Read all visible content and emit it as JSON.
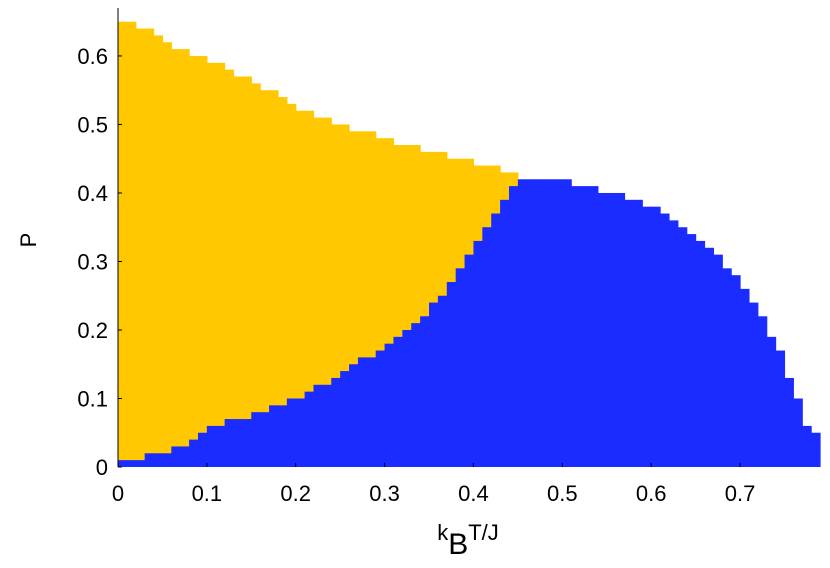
{
  "chart_data": {
    "type": "step-area",
    "xlabel": [
      "k",
      "B",
      "T/J"
    ],
    "ylabel": "P",
    "x": [
      0,
      0.01,
      0.02,
      0.03,
      0.04,
      0.05,
      0.06,
      0.07,
      0.08,
      0.09,
      0.1,
      0.11,
      0.12,
      0.13,
      0.14,
      0.15,
      0.16,
      0.17,
      0.18,
      0.19,
      0.2,
      0.21,
      0.22,
      0.23,
      0.24,
      0.25,
      0.26,
      0.27,
      0.28,
      0.29,
      0.3,
      0.31,
      0.32,
      0.33,
      0.34,
      0.35,
      0.36,
      0.37,
      0.38,
      0.39,
      0.4,
      0.41,
      0.42,
      0.43,
      0.44,
      0.45,
      0.46,
      0.47,
      0.48,
      0.49,
      0.5,
      0.51,
      0.52,
      0.53,
      0.54,
      0.55,
      0.56,
      0.57,
      0.58,
      0.59,
      0.6,
      0.61,
      0.62,
      0.63,
      0.64,
      0.65,
      0.66,
      0.67,
      0.68,
      0.69,
      0.7,
      0.71,
      0.72,
      0.73,
      0.74,
      0.75,
      0.76,
      0.77,
      0.78
    ],
    "step_width": 0.01,
    "series": [
      {
        "color": "#ffc800",
        "values": [
          0.65,
          0.65,
          0.64,
          0.64,
          0.63,
          0.62,
          0.61,
          0.61,
          0.6,
          0.6,
          0.59,
          0.59,
          0.58,
          0.57,
          0.57,
          0.56,
          0.55,
          0.55,
          0.54,
          0.53,
          0.52,
          0.52,
          0.51,
          0.51,
          0.5,
          0.5,
          0.49,
          0.49,
          0.49,
          0.48,
          0.48,
          0.47,
          0.47,
          0.47,
          0.46,
          0.46,
          0.46,
          0.45,
          0.45,
          0.45,
          0.44,
          0.44,
          0.44,
          0.43,
          0.43,
          null,
          null,
          null,
          null,
          null,
          null,
          null,
          null,
          null,
          null,
          null,
          null,
          null,
          null,
          null,
          null,
          null,
          null,
          null,
          null,
          null,
          null,
          null,
          null,
          null,
          null,
          null,
          null,
          null,
          null,
          null,
          null,
          null,
          null
        ]
      },
      {
        "color": "#1a2cff",
        "values": [
          0.01,
          0.01,
          0.01,
          0.02,
          0.02,
          0.02,
          0.03,
          0.03,
          0.04,
          0.05,
          0.06,
          0.06,
          0.07,
          0.07,
          0.07,
          0.08,
          0.08,
          0.09,
          0.09,
          0.1,
          0.1,
          0.11,
          0.12,
          0.12,
          0.13,
          0.14,
          0.15,
          0.16,
          0.16,
          0.17,
          0.18,
          0.19,
          0.2,
          0.21,
          0.22,
          0.24,
          0.25,
          0.27,
          0.29,
          0.31,
          0.33,
          0.35,
          0.37,
          0.39,
          0.41,
          0.42,
          0.42,
          0.42,
          0.42,
          0.42,
          0.42,
          0.41,
          0.41,
          0.41,
          0.4,
          0.4,
          0.4,
          0.39,
          0.39,
          0.38,
          0.38,
          0.37,
          0.36,
          0.35,
          0.34,
          0.33,
          0.32,
          0.31,
          0.29,
          0.28,
          0.26,
          0.24,
          0.22,
          0.19,
          0.17,
          0.13,
          0.1,
          0.06,
          0.05
        ]
      }
    ],
    "xlim": [
      0,
      0.79
    ],
    "ylim": [
      0,
      0.67
    ],
    "xticks": [
      0,
      0.1,
      0.2,
      0.3,
      0.4,
      0.5,
      0.6,
      0.7
    ],
    "yticks": [
      0,
      0.1,
      0.2,
      0.3,
      0.4,
      0.5,
      0.6
    ]
  }
}
